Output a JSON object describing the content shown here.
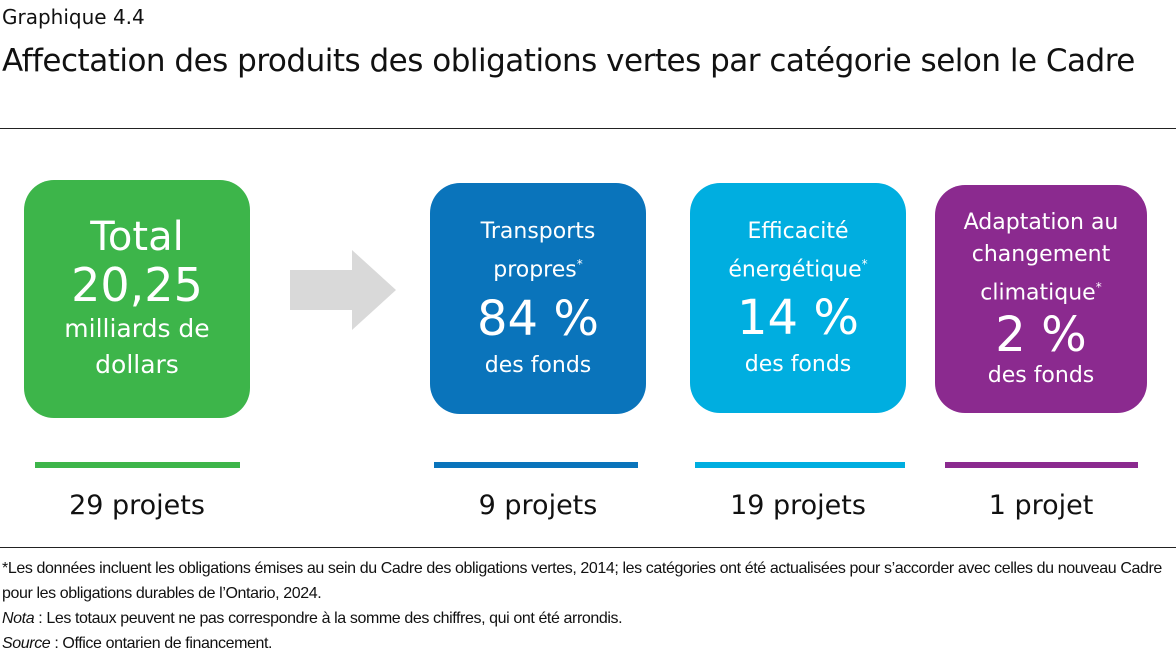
{
  "kicker": "Graphique 4.4",
  "title": "Affectation des produits des obligations vertes par catégorie selon le Cadre",
  "colors": {
    "total": "#3db54a",
    "transports": "#0a74bb",
    "efficacite": "#00aee0",
    "adaptation": "#8b2a8f",
    "arrow": "#d9d9d9"
  },
  "total": {
    "line1": "Total",
    "amount": "20,25",
    "unit": "milliards de dollars",
    "projects": "29 projets"
  },
  "categories": [
    {
      "name": "Transports propres",
      "star": "*",
      "share": "84 %",
      "share_value": 84,
      "fonds": "des fonds",
      "projects": "9 projets"
    },
    {
      "name": "Efficacité énergétique",
      "star": "*",
      "share": "14 %",
      "share_value": 14,
      "fonds": "des fonds",
      "projects": "19 projets"
    },
    {
      "name": "Adaptation au changement climatique",
      "star": "*",
      "share": "2 %",
      "share_value": 2,
      "fonds": "des fonds",
      "projects": "1 projet"
    }
  ],
  "notes": {
    "footnote": "*Les données incluent les obligations émises au sein du Cadre des obligations vertes, 2014; les catégories ont été actualisées pour s’accorder avec celles du nouveau Cadre pour les obligations durables de l’Ontario, 2024.",
    "nota_label": "Nota",
    "nota": " : Les totaux peuvent ne pas correspondre à la somme des chiffres, qui ont été arrondis.",
    "source_label": "Source",
    "source": " : Office ontarien de financement."
  }
}
